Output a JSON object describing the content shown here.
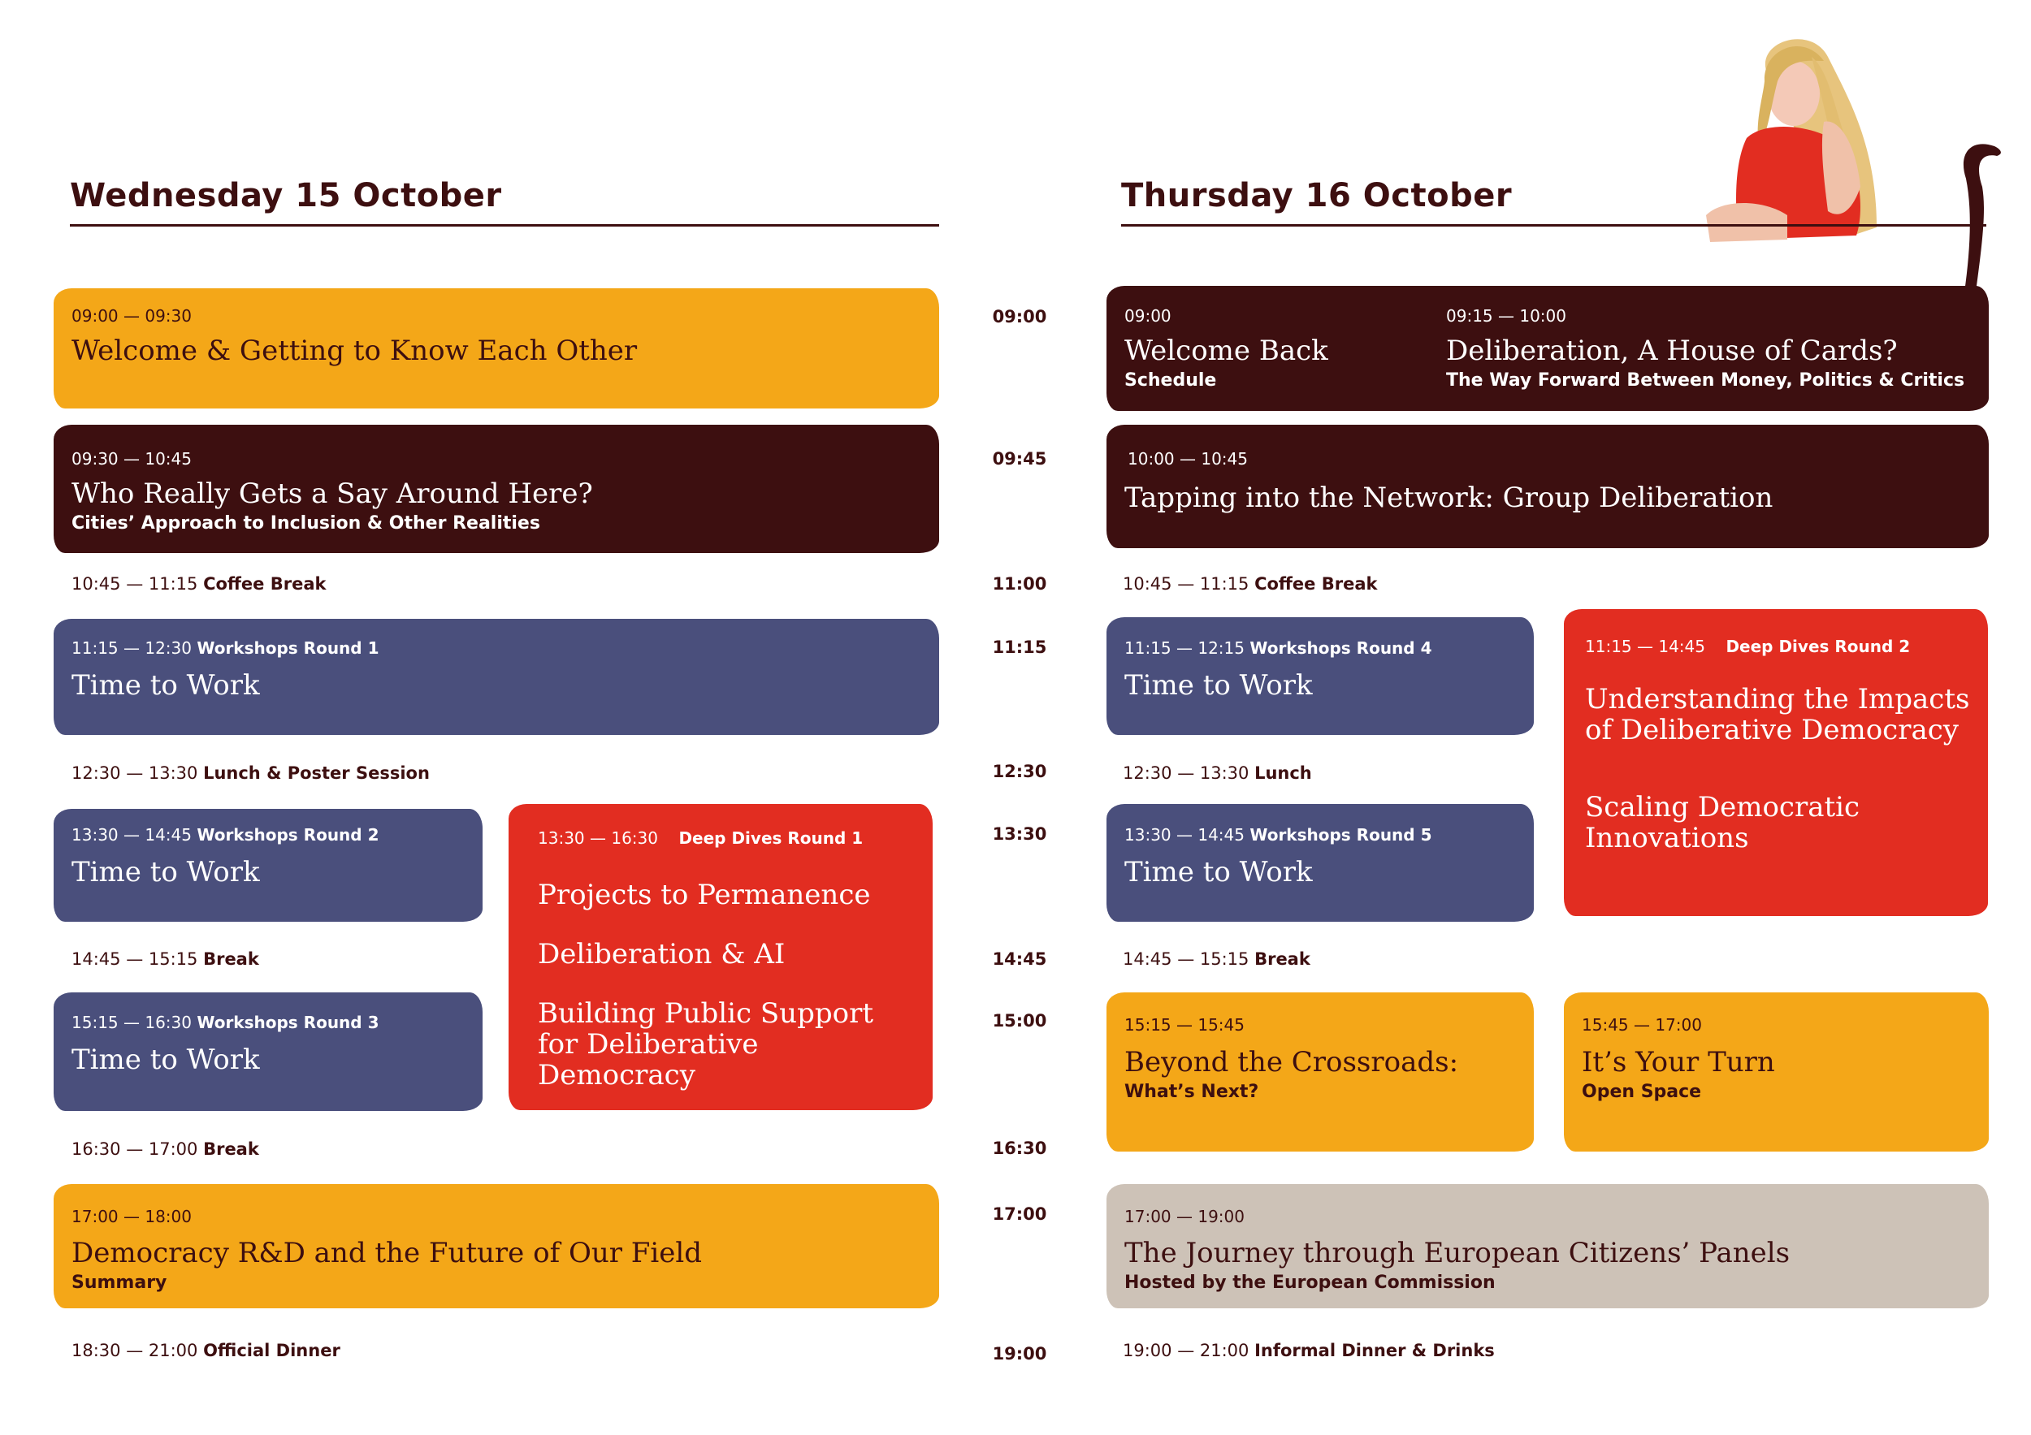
{
  "colors": {
    "maroon": "#3d0f10",
    "yellow": "#f4a718",
    "blue": "#4a4f7c",
    "red": "#e22d21",
    "beige": "#cdc2b7"
  },
  "illustration": "girl-leaning-on-line-illustration",
  "timeline": [
    "09:00",
    "09:45",
    "11:00",
    "11:15",
    "12:30",
    "13:30",
    "14:45",
    "15:00",
    "16:30",
    "17:00",
    "19:00"
  ],
  "wednesday": {
    "title": "Wednesday 15 October",
    "welcome": {
      "time": "09:00 — 09:30",
      "title": "Welcome & Getting to Know Each Other"
    },
    "say": {
      "time": "09:30 — 10:45",
      "title": "Who Really Gets a Say Around Here?",
      "subtitle": "Cities’ Approach to Inclusion & Other Realities"
    },
    "coffee": {
      "time": "10:45 — 11:15",
      "label": "Coffee Break"
    },
    "ws1": {
      "time": "11:15 — 12:30",
      "label": "Workshops Round 1",
      "title": "Time to Work"
    },
    "lunch": {
      "time": "12:30 — 13:30",
      "label": "Lunch & Poster Session"
    },
    "ws2": {
      "time": "13:30 — 14:45",
      "label": "Workshops Round 2",
      "title": "Time to Work"
    },
    "deep1": {
      "time": "13:30 — 16:30",
      "label": "Deep Dives Round 1",
      "items": [
        "Projects to Permanence",
        "Deliberation & AI",
        "Building Public Support for Deliberative Democracy"
      ]
    },
    "break1": {
      "time": "14:45 — 15:15",
      "label": "Break"
    },
    "ws3": {
      "time": "15:15 — 16:30",
      "label": "Workshops Round 3",
      "title": "Time to Work"
    },
    "break2": {
      "time": "16:30 — 17:00",
      "label": "Break"
    },
    "rd": {
      "time": "17:00 — 18:00",
      "title": "Democracy R&D and the Future of Our Field",
      "subtitle": "Summary"
    },
    "dinner": {
      "time": "18:30 — 21:00",
      "label": "Official Dinner"
    }
  },
  "thursday": {
    "title": "Thursday 16 October",
    "back": {
      "time": "09:00",
      "title": "Welcome Back",
      "subtitle": "Schedule"
    },
    "cards": {
      "time": "09:15 — 10:00",
      "title": "Deliberation, A House of Cards?",
      "subtitle": "The Way Forward Between Money, Politics & Critics"
    },
    "network": {
      "time": "10:00 — 10:45",
      "title": "Tapping into the Network: Group Deliberation"
    },
    "coffee": {
      "time": "10:45 — 11:15",
      "label": "Coffee Break"
    },
    "ws4": {
      "time": "11:15 — 12:15",
      "label": "Workshops Round 4",
      "title": "Time to Work"
    },
    "deep2": {
      "time": "11:15 — 14:45",
      "label": "Deep Dives Round 2",
      "items": [
        "Understanding the Impacts of Deliberative Democracy",
        "Scaling Democratic Innovations"
      ]
    },
    "lunch": {
      "time": "12:30 — 13:30",
      "label": "Lunch"
    },
    "ws5": {
      "time": "13:30 — 14:45",
      "label": "Workshops Round 5",
      "title": "Time to Work"
    },
    "break1": {
      "time": "14:45 — 15:15",
      "label": "Break"
    },
    "crossroads": {
      "time": "15:15 — 15:45",
      "title": "Beyond the Crossroads:",
      "subtitle": "What’s Next?"
    },
    "turn": {
      "time": "15:45 — 17:00",
      "title": "It’s Your Turn",
      "subtitle": "Open Space"
    },
    "journey": {
      "time": "17:00 — 19:00",
      "title": "The Journey through European Citizens’ Panels",
      "subtitle": "Hosted by the European Commission"
    },
    "dinner": {
      "time": "19:00 — 21:00",
      "label": "Informal Dinner & Drinks"
    }
  }
}
